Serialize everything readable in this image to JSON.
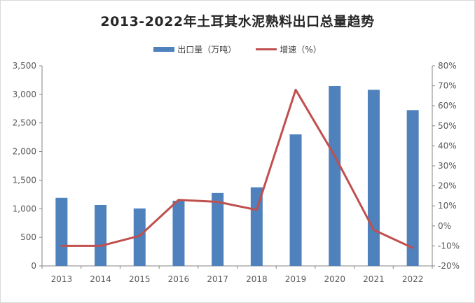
{
  "chart_data": {
    "type": "bar+line",
    "title": "2013-2022年土耳其水泥熟料出口总量趋势",
    "categories": [
      "2013",
      "2014",
      "2015",
      "2016",
      "2017",
      "2018",
      "2019",
      "2020",
      "2021",
      "2022"
    ],
    "series": [
      {
        "name": "出口量（万吨）",
        "type": "bar",
        "axis": "left",
        "color": "#4f81bd",
        "values": [
          1190,
          1065,
          1005,
          1140,
          1275,
          1375,
          2300,
          3145,
          3080,
          2725
        ]
      },
      {
        "name": "增速（%）",
        "type": "line",
        "axis": "right",
        "color": "#c0504d",
        "values": [
          -10,
          -10,
          -5,
          13,
          12,
          8,
          68,
          35,
          -2,
          -11
        ]
      }
    ],
    "y_left": {
      "min": 0,
      "max": 3500,
      "step": 500,
      "tick_labels": [
        "0",
        "500",
        "1,000",
        "1,500",
        "2,000",
        "2,500",
        "3,000",
        "3,500"
      ]
    },
    "y_right": {
      "min": -20,
      "max": 80,
      "step": 10,
      "tick_labels": [
        "-20%",
        "-10%",
        "0%",
        "10%",
        "20%",
        "30%",
        "40%",
        "50%",
        "60%",
        "70%",
        "80%"
      ]
    },
    "grid": false,
    "legend_position": "top"
  }
}
